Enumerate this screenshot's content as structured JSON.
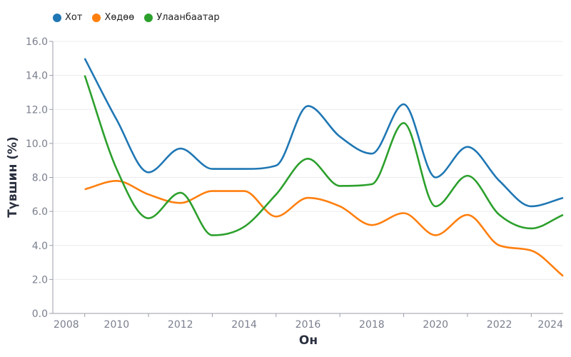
{
  "chart_data": {
    "type": "line",
    "title": "",
    "xlabel": "Он",
    "ylabel": "Түвшин (%)",
    "xlim": [
      2008,
      2024
    ],
    "ylim": [
      0,
      16
    ],
    "x_ticks": [
      "2008",
      "2010",
      "2012",
      "2014",
      "2016",
      "2018",
      "2020",
      "2022",
      "2024"
    ],
    "y_ticks": [
      "0.0",
      "2.0",
      "4.0",
      "6.0",
      "8.0",
      "10.0",
      "12.0",
      "14.0",
      "16.0"
    ],
    "grid": "horizontal",
    "legend_position": "top-left",
    "interpolation": "monotone",
    "x": [
      2009,
      2010,
      2011,
      2012,
      2013,
      2014,
      2015,
      2016,
      2017,
      2018,
      2019,
      2020,
      2021,
      2022,
      2023,
      2024
    ],
    "series": [
      {
        "name": "Хот",
        "color": "#1f77b4",
        "values": [
          15.0,
          11.4,
          8.3,
          9.7,
          8.5,
          8.5,
          8.7,
          12.2,
          10.4,
          9.4,
          12.3,
          8.0,
          9.8,
          7.8,
          6.3,
          6.8
        ]
      },
      {
        "name": "Хөдөө",
        "color": "#ff7f0e",
        "values": [
          7.3,
          7.8,
          7.0,
          6.5,
          7.2,
          7.2,
          5.7,
          6.8,
          6.3,
          5.2,
          5.9,
          4.6,
          5.8,
          4.0,
          3.7,
          2.2
        ]
      },
      {
        "name": "Улаанбаатар",
        "color": "#2ca02c",
        "values": [
          14.0,
          8.5,
          5.6,
          7.1,
          4.6,
          5.1,
          7.0,
          9.1,
          7.5,
          7.6,
          11.2,
          6.3,
          8.1,
          5.8,
          5.0,
          5.8
        ]
      }
    ]
  }
}
